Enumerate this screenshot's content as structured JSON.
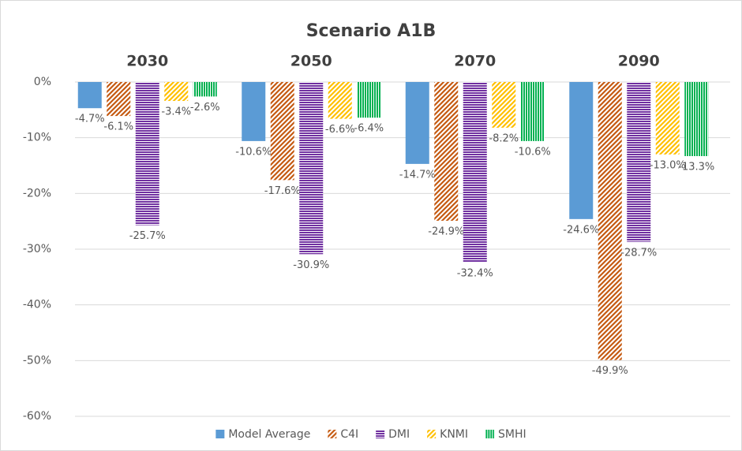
{
  "chart_data": {
    "type": "bar",
    "title": "Scenario A1B",
    "categories": [
      "2030",
      "2050",
      "2070",
      "2090"
    ],
    "series": [
      {
        "name": "Model Average",
        "color": "#5b9bd5",
        "pattern": "solid",
        "values": [
          -4.7,
          -10.6,
          -14.7,
          -24.6
        ],
        "value_labels": [
          "-4.7%",
          "-10.6%",
          "-14.7%",
          "-24.6%"
        ]
      },
      {
        "name": "C4I",
        "color": "#c55a11",
        "pattern": "diagonal",
        "values": [
          -6.1,
          -17.6,
          -24.9,
          -49.9
        ],
        "value_labels": [
          "-6.1%",
          "-17.6%",
          "-24.9%",
          "-49.9%"
        ]
      },
      {
        "name": "DMI",
        "color": "#7030a0",
        "pattern": "horizontal",
        "values": [
          -25.7,
          -30.9,
          -32.4,
          -28.7
        ],
        "value_labels": [
          "-25.7%",
          "-30.9%",
          "-32.4%",
          "-28.7%"
        ]
      },
      {
        "name": "KNMI",
        "color": "#ffc000",
        "pattern": "diagonal",
        "values": [
          -3.4,
          -6.6,
          -8.2,
          -13.0
        ],
        "value_labels": [
          "-3.4%",
          "-6.6%",
          "-8.2%",
          "-13.0%"
        ]
      },
      {
        "name": "SMHI",
        "color": "#00b050",
        "pattern": "vertical",
        "values": [
          -2.6,
          -6.4,
          -10.6,
          -13.3
        ],
        "value_labels": [
          "-2.6%",
          "-6.4%",
          "-10.6%",
          "-13.3%"
        ]
      }
    ],
    "ylim": [
      -60,
      0
    ],
    "yticks": [
      {
        "value": 0,
        "label": "0%"
      },
      {
        "value": -10,
        "label": "-10%"
      },
      {
        "value": -20,
        "label": "-20%"
      },
      {
        "value": -30,
        "label": "-30%"
      },
      {
        "value": -40,
        "label": "-40%"
      },
      {
        "value": -50,
        "label": "-50%"
      },
      {
        "value": -60,
        "label": "-60%"
      }
    ],
    "grid": true,
    "legend": "bottom"
  }
}
